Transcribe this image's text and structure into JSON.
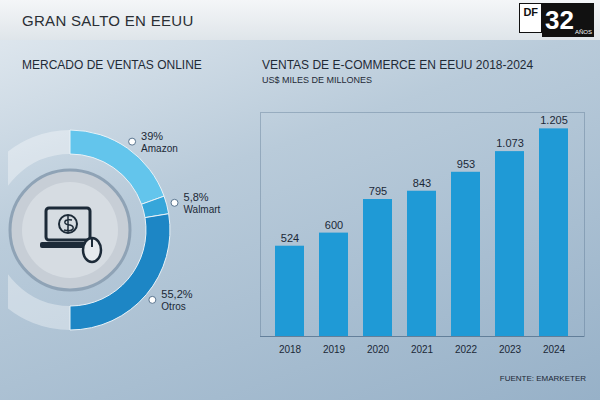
{
  "title": "GRAN SALTO EN EEUU",
  "logo": {
    "brand": "DF",
    "number": "32",
    "sub": "AÑOS"
  },
  "source": "FUENTE: EMARKETER",
  "chart_data": [
    {
      "type": "donut",
      "title": "MERCADO DE VENTAS ONLINE",
      "categories": [
        "Amazon",
        "Walmart",
        "Otros"
      ],
      "values": [
        39,
        5.8,
        55.2
      ],
      "value_labels": [
        "39%",
        "5,8%",
        "55,2%"
      ],
      "colors": [
        "#63c5ec",
        "#36a6da",
        "#1d86c5"
      ],
      "data_labels": true
    },
    {
      "type": "bar",
      "title": "VENTAS DE E-COMMERCE EN EEUU 2018-2024",
      "subtitle": "US$ MILES DE MILLONES",
      "categories": [
        "2018",
        "2019",
        "2020",
        "2021",
        "2022",
        "2023",
        "2024"
      ],
      "values": [
        524,
        600,
        795,
        843,
        953,
        1073,
        1205
      ],
      "value_labels": [
        "524",
        "600",
        "795",
        "843",
        "953",
        "1.073",
        "1.205"
      ],
      "color": "#1f9ad6",
      "ylim": [
        0,
        1300
      ],
      "grid": false,
      "data_labels": true,
      "tick_labels": "x"
    }
  ]
}
